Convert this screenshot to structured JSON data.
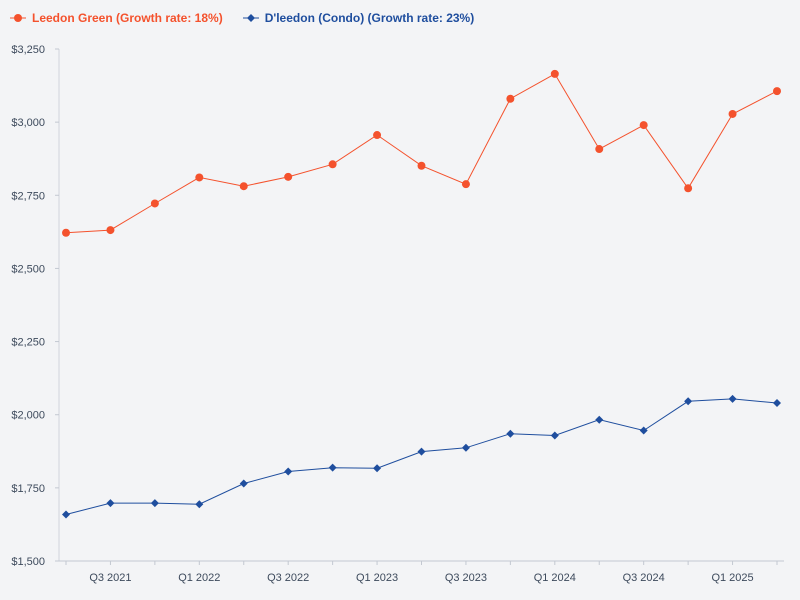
{
  "chart_data": {
    "type": "line",
    "title": "",
    "xlabel": "",
    "ylabel": "",
    "ylim": [
      1500,
      3250
    ],
    "yticks": [
      "$1,500",
      "$1,750",
      "$2,000",
      "$2,250",
      "$2,500",
      "$2,750",
      "$3,000",
      "$3,250"
    ],
    "ytick_values": [
      1500,
      1750,
      2000,
      2250,
      2500,
      2750,
      3000,
      3250
    ],
    "x_labels": [
      "",
      "Q3 2021",
      "",
      "Q1 2022",
      "",
      "Q3 2022",
      "",
      "Q1 2023",
      "",
      "Q3 2023",
      "",
      "Q1 2024",
      "",
      "Q3 2024",
      "",
      "Q1 2025",
      ""
    ],
    "grid": false,
    "legend_position": "top-left",
    "series": [
      {
        "name": "Leedon Green (Growth rate: 18%)",
        "color": "#f4522d",
        "marker": "circle",
        "values": [
          2622,
          2631,
          2722,
          2811,
          2781,
          2813,
          2856,
          2956,
          2851,
          2788,
          3080,
          3165,
          2908,
          2990,
          2774,
          3028,
          3106
        ]
      },
      {
        "name": "D'leedon (Condo) (Growth rate: 23%)",
        "color": "#1f4e9e",
        "marker": "diamond",
        "values": [
          1659,
          1698,
          1698,
          1694,
          1765,
          1806,
          1819,
          1817,
          1874,
          1887,
          1935,
          1929,
          1983,
          1946,
          2046,
          2054,
          2040
        ]
      }
    ]
  }
}
